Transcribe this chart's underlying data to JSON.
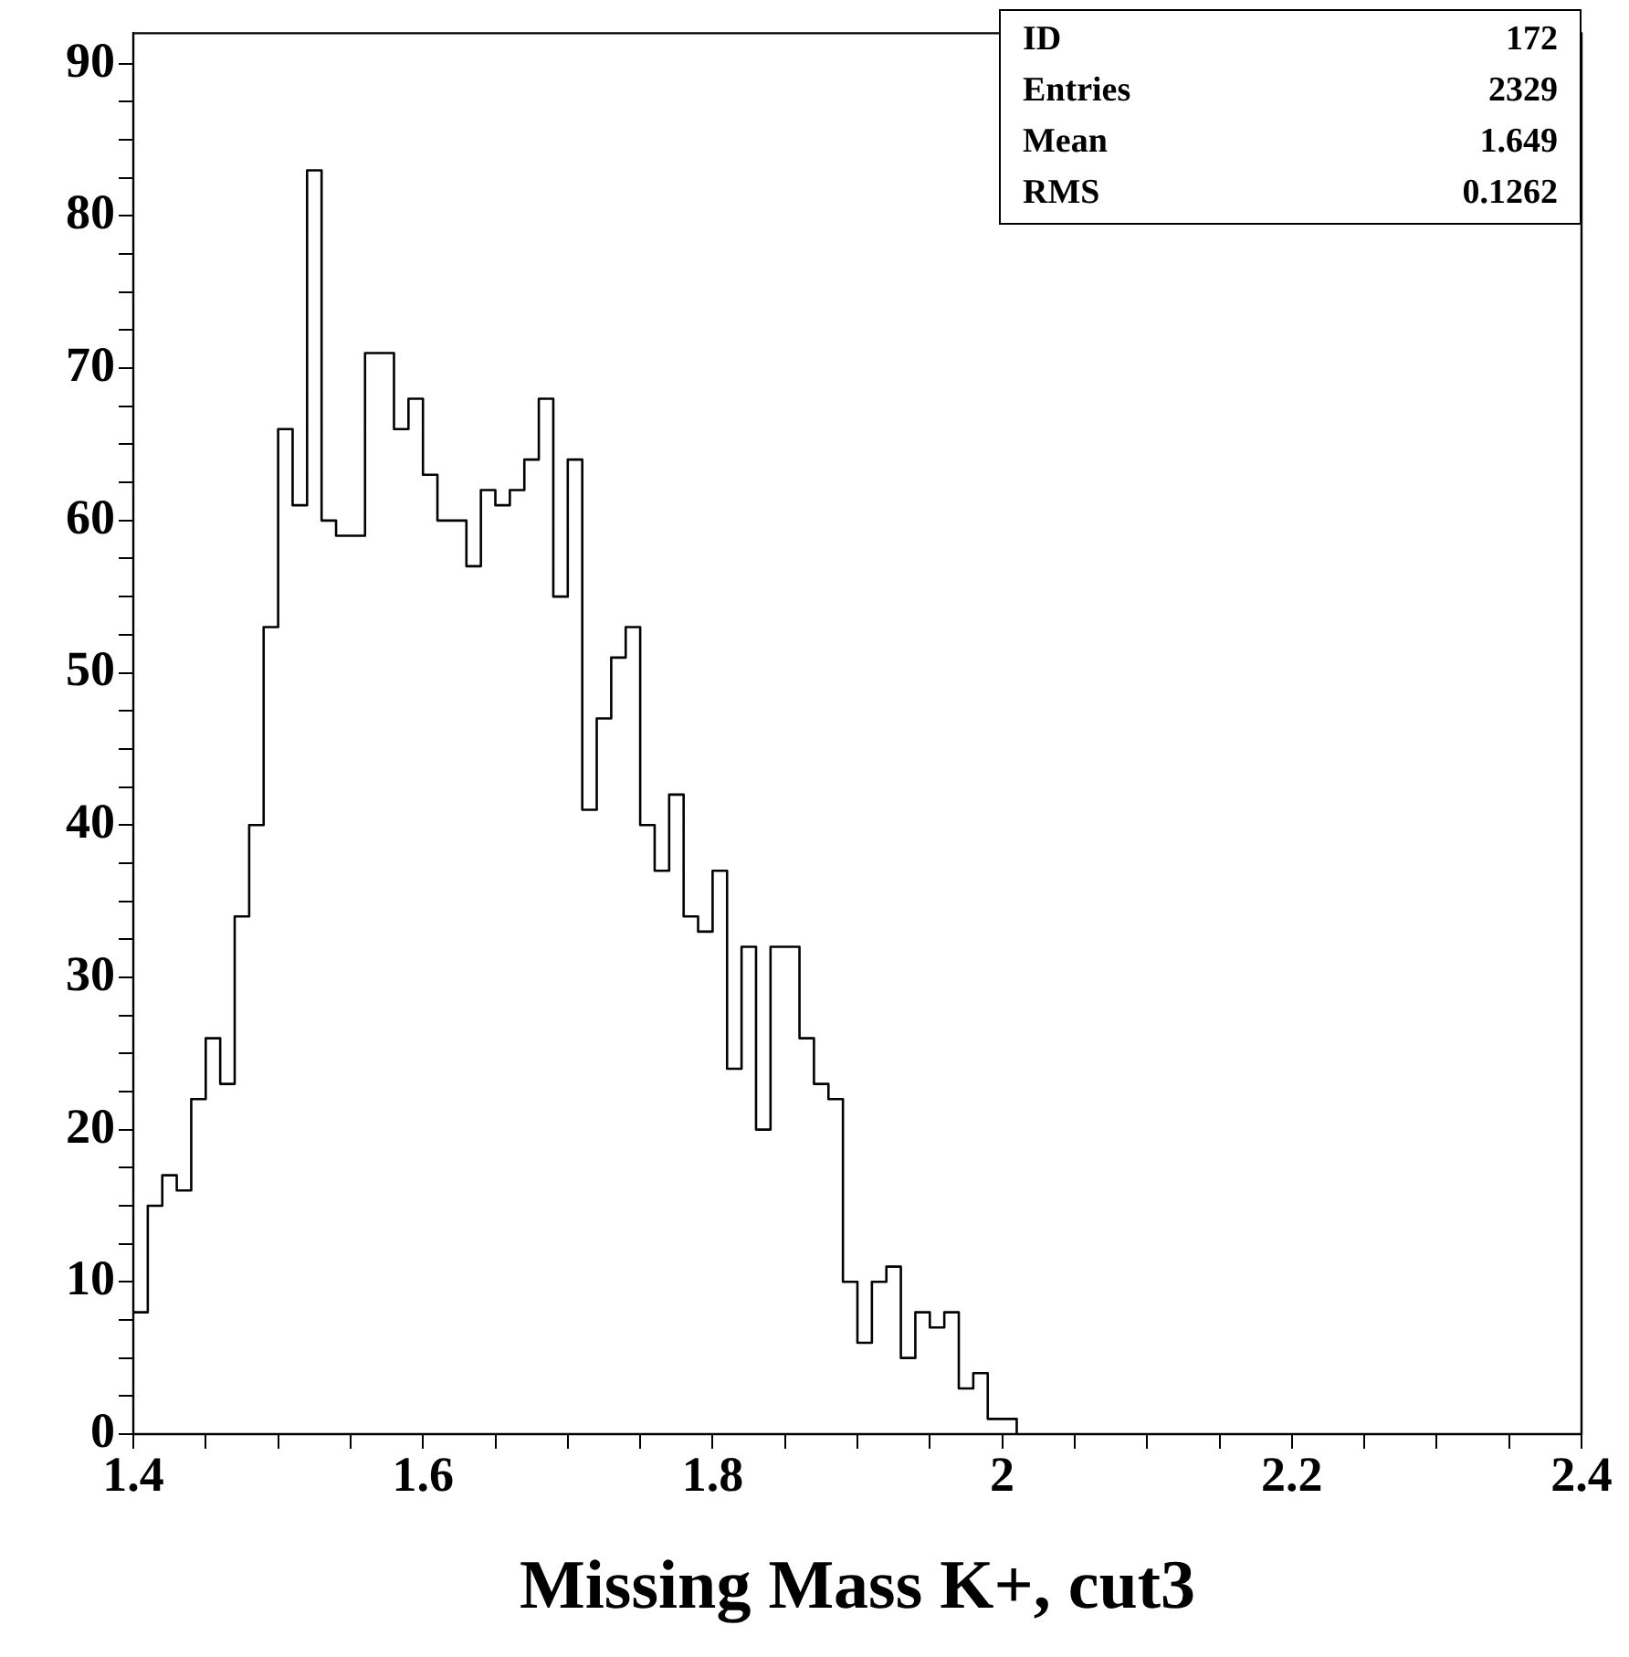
{
  "chart_data": {
    "type": "histogram",
    "xlabel": "Missing Mass K+, cut3",
    "color": "#000000",
    "bins": [
      1.4,
      1.41,
      1.42,
      1.43,
      1.44,
      1.45,
      1.46,
      1.47,
      1.48,
      1.49,
      1.5,
      1.51,
      1.52,
      1.53,
      1.54,
      1.55,
      1.56,
      1.57,
      1.58,
      1.59,
      1.6,
      1.61,
      1.62,
      1.63,
      1.64,
      1.65,
      1.66,
      1.67,
      1.68,
      1.69,
      1.7,
      1.71,
      1.72,
      1.73,
      1.74,
      1.75,
      1.76,
      1.77,
      1.78,
      1.79,
      1.8,
      1.81,
      1.82,
      1.83,
      1.84,
      1.85,
      1.86,
      1.87,
      1.88,
      1.89,
      1.9,
      1.91,
      1.92,
      1.93,
      1.94,
      1.95,
      1.96,
      1.97,
      1.98,
      1.99,
      2.0,
      2.01
    ],
    "values": [
      8,
      15,
      17,
      16,
      22,
      26,
      23,
      34,
      40,
      53,
      66,
      61,
      83,
      60,
      59,
      59,
      71,
      71,
      66,
      68,
      63,
      60,
      60,
      57,
      62,
      61,
      62,
      64,
      68,
      55,
      64,
      41,
      47,
      51,
      53,
      40,
      37,
      42,
      34,
      33,
      37,
      24,
      32,
      20,
      32,
      32,
      26,
      23,
      22,
      10,
      6,
      10,
      11,
      5,
      8,
      7,
      8,
      3,
      4,
      1,
      1
    ],
    "xlim": [
      1.4,
      2.4
    ],
    "xticks": [
      1.4,
      {
        "value": 1.45,
        "label": null
      },
      {
        "value": 1.5,
        "label": null
      },
      {
        "value": 1.55,
        "label": null
      },
      1.6,
      {
        "value": 1.65,
        "label": null
      },
      {
        "value": 1.7,
        "label": null
      },
      {
        "value": 1.75,
        "label": null
      },
      1.8,
      {
        "value": 1.85,
        "label": null
      },
      {
        "value": 1.9,
        "label": null
      },
      {
        "value": 1.95,
        "label": null
      },
      2,
      {
        "value": 2.05,
        "label": null
      },
      {
        "value": 2.1,
        "label": null
      },
      {
        "value": 2.15,
        "label": null
      },
      2.2,
      {
        "value": 2.25,
        "label": null
      },
      {
        "value": 2.3,
        "label": null
      },
      {
        "value": 2.35,
        "label": null
      },
      2.4
    ],
    "ylim": [
      0,
      92
    ],
    "yticks": [
      0,
      {
        "value": 2.5,
        "label": null
      },
      {
        "value": 5,
        "label": null
      },
      {
        "value": 7.5,
        "label": null
      },
      10,
      {
        "value": 12.5,
        "label": null
      },
      {
        "value": 15,
        "label": null
      },
      {
        "value": 17.5,
        "label": null
      },
      20,
      {
        "value": 22.5,
        "label": null
      },
      {
        "value": 25,
        "label": null
      },
      {
        "value": 27.5,
        "label": null
      },
      30,
      {
        "value": 32.5,
        "label": null
      },
      {
        "value": 35,
        "label": null
      },
      {
        "value": 37.5,
        "label": null
      },
      40,
      {
        "value": 42.5,
        "label": null
      },
      {
        "value": 45,
        "label": null
      },
      {
        "value": 47.5,
        "label": null
      },
      50,
      {
        "value": 52.5,
        "label": null
      },
      {
        "value": 55,
        "label": null
      },
      {
        "value": 57.5,
        "label": null
      },
      60,
      {
        "value": 62.5,
        "label": null
      },
      {
        "value": 65,
        "label": null
      },
      {
        "value": 67.5,
        "label": null
      },
      70,
      {
        "value": 72.5,
        "label": null
      },
      {
        "value": 75,
        "label": null
      },
      {
        "value": 77.5,
        "label": null
      },
      80,
      {
        "value": 82.5,
        "label": null
      },
      {
        "value": 85,
        "label": null
      },
      {
        "value": 87.5,
        "label": null
      },
      90
    ],
    "annotations": [
      "ID 172",
      "Entries 2329",
      "Mean 1.649",
      "RMS 0.1262"
    ]
  }
}
